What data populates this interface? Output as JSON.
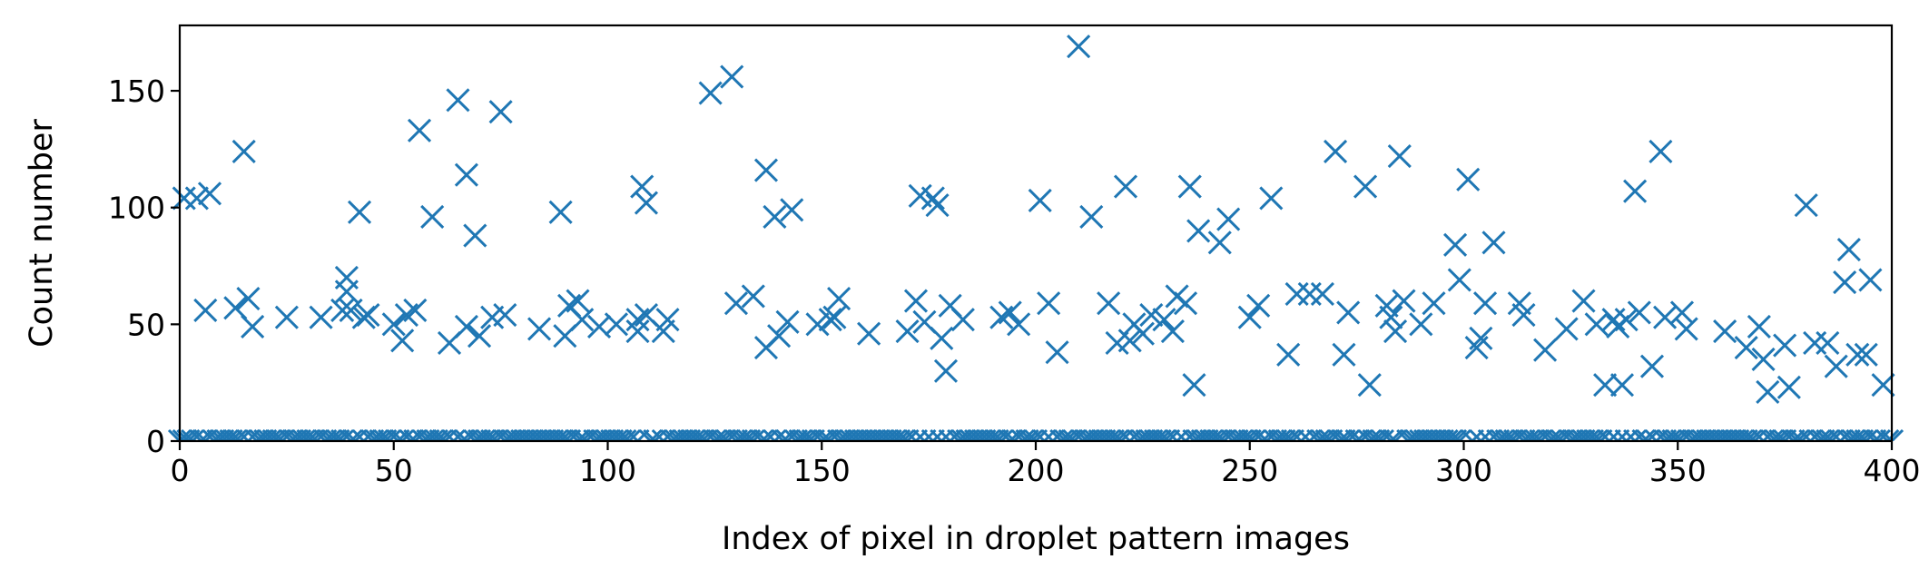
{
  "chart_data": {
    "type": "scatter",
    "marker": "x",
    "color": "#1f77b4",
    "title": "",
    "xlabel": "Index of pixel in droplet pattern images",
    "ylabel": "Count number",
    "xlim": [
      0,
      400
    ],
    "ylim": [
      0,
      178
    ],
    "xticks": [
      0,
      50,
      100,
      150,
      200,
      250,
      300,
      350,
      400
    ],
    "yticks": [
      0,
      50,
      100,
      150
    ],
    "grid": false,
    "legend": "none",
    "zero_count_indices": [
      0,
      1,
      2,
      3,
      5,
      6,
      8,
      9,
      10,
      11,
      12,
      13,
      14,
      16,
      18,
      19,
      20,
      21,
      22,
      23,
      24,
      26,
      27,
      28,
      29,
      30,
      31,
      32,
      34,
      35,
      36,
      37,
      38,
      40,
      41,
      43,
      45,
      46,
      47,
      48,
      49,
      51,
      52,
      54,
      55,
      57,
      58,
      59,
      60,
      61,
      62,
      64,
      66,
      67,
      69,
      70,
      71,
      72,
      73,
      74,
      76,
      77,
      78,
      79,
      80,
      81,
      82,
      83,
      84,
      85,
      86,
      87,
      88,
      89,
      90,
      91,
      93,
      94,
      95,
      97,
      98,
      99,
      100,
      101,
      102,
      103,
      104,
      105,
      107,
      110,
      111,
      113,
      115,
      116,
      117,
      118,
      119,
      120,
      121,
      122,
      123,
      125,
      126,
      127,
      128,
      130,
      131,
      132,
      133,
      134,
      136,
      137,
      139,
      141,
      142,
      144,
      145,
      146,
      147,
      148,
      150,
      151,
      152,
      154,
      155,
      156,
      157,
      158,
      159,
      160,
      161,
      162,
      163,
      164,
      165,
      166,
      167,
      168,
      169,
      170,
      172,
      174,
      176,
      178,
      180,
      182,
      183,
      184,
      185,
      186,
      187,
      188,
      189,
      190,
      191,
      192,
      194,
      195,
      197,
      198,
      199,
      200,
      202,
      204,
      206,
      207,
      208,
      209,
      211,
      212,
      213,
      214,
      215,
      216,
      217,
      218,
      219,
      220,
      222,
      224,
      225,
      226,
      227,
      228,
      229,
      230,
      231,
      233,
      235,
      237,
      238,
      239,
      240,
      241,
      242,
      243,
      244,
      246,
      247,
      248,
      249,
      250,
      251,
      253,
      254,
      256,
      257,
      258,
      259,
      260,
      262,
      264,
      266,
      267,
      268,
      269,
      271,
      272,
      273,
      275,
      276,
      278,
      279,
      280,
      281,
      283,
      284,
      287,
      288,
      289,
      290,
      291,
      292,
      293,
      294,
      295,
      296,
      297,
      298,
      299,
      302,
      304,
      306,
      308,
      309,
      310,
      311,
      312,
      314,
      315,
      316,
      317,
      318,
      320,
      321,
      322,
      323,
      325,
      326,
      327,
      328,
      329,
      330,
      331,
      332,
      334,
      336,
      338,
      340,
      342,
      343,
      345,
      347,
      348,
      349,
      350,
      351,
      353,
      354,
      355,
      356,
      357,
      358,
      359,
      360,
      361,
      362,
      363,
      364,
      365,
      366,
      367,
      368,
      370,
      372,
      373,
      374,
      375,
      377,
      378,
      379,
      381,
      383,
      384,
      385,
      386,
      388,
      390,
      391,
      392,
      393,
      394,
      396,
      397,
      399,
      400
    ],
    "points": [
      [
        1,
        104
      ],
      [
        4,
        104
      ],
      [
        7,
        106
      ],
      [
        6,
        56
      ],
      [
        13,
        57
      ],
      [
        15,
        124
      ],
      [
        16,
        61
      ],
      [
        17,
        49
      ],
      [
        25,
        53
      ],
      [
        33,
        53
      ],
      [
        38,
        56
      ],
      [
        39,
        64
      ],
      [
        39,
        70
      ],
      [
        40,
        56
      ],
      [
        42,
        98
      ],
      [
        43,
        53
      ],
      [
        44,
        54
      ],
      [
        50,
        50
      ],
      [
        52,
        43
      ],
      [
        53,
        54
      ],
      [
        55,
        56
      ],
      [
        56,
        133
      ],
      [
        59,
        96
      ],
      [
        63,
        42
      ],
      [
        65,
        146
      ],
      [
        67,
        49
      ],
      [
        67,
        114
      ],
      [
        69,
        88
      ],
      [
        70,
        45
      ],
      [
        73,
        53
      ],
      [
        75,
        141
      ],
      [
        76,
        54
      ],
      [
        84,
        48
      ],
      [
        89,
        98
      ],
      [
        90,
        45
      ],
      [
        91,
        58
      ],
      [
        93,
        60
      ],
      [
        94,
        52
      ],
      [
        98,
        49
      ],
      [
        102,
        50
      ],
      [
        107,
        52
      ],
      [
        107,
        47
      ],
      [
        108,
        109
      ],
      [
        109,
        102
      ],
      [
        109,
        54
      ],
      [
        113,
        47
      ],
      [
        114,
        52
      ],
      [
        124,
        149
      ],
      [
        129,
        156
      ],
      [
        130,
        59
      ],
      [
        134,
        62
      ],
      [
        137,
        116
      ],
      [
        137,
        40
      ],
      [
        139,
        96
      ],
      [
        140,
        45
      ],
      [
        142,
        51
      ],
      [
        143,
        99
      ],
      [
        149,
        50
      ],
      [
        152,
        52
      ],
      [
        153,
        53
      ],
      [
        154,
        61
      ],
      [
        161,
        46
      ],
      [
        170,
        47
      ],
      [
        172,
        60
      ],
      [
        173,
        105
      ],
      [
        174,
        51
      ],
      [
        176,
        104
      ],
      [
        177,
        101
      ],
      [
        178,
        44
      ],
      [
        179,
        30
      ],
      [
        180,
        58
      ],
      [
        183,
        52
      ],
      [
        192,
        53
      ],
      [
        194,
        55
      ],
      [
        196,
        50
      ],
      [
        201,
        103
      ],
      [
        203,
        59
      ],
      [
        205,
        38
      ],
      [
        210,
        169
      ],
      [
        213,
        96
      ],
      [
        217,
        59
      ],
      [
        219,
        42
      ],
      [
        221,
        109
      ],
      [
        222,
        43
      ],
      [
        223,
        50
      ],
      [
        225,
        46
      ],
      [
        227,
        54
      ],
      [
        230,
        52
      ],
      [
        232,
        47
      ],
      [
        233,
        62
      ],
      [
        235,
        59
      ],
      [
        236,
        109
      ],
      [
        237,
        24
      ],
      [
        238,
        90
      ],
      [
        243,
        85
      ],
      [
        245,
        95
      ],
      [
        250,
        53
      ],
      [
        252,
        58
      ],
      [
        255,
        104
      ],
      [
        259,
        37
      ],
      [
        261,
        63
      ],
      [
        264,
        63
      ],
      [
        267,
        63
      ],
      [
        270,
        124
      ],
      [
        272,
        37
      ],
      [
        273,
        55
      ],
      [
        277,
        109
      ],
      [
        278,
        24
      ],
      [
        282,
        58
      ],
      [
        283,
        53
      ],
      [
        284,
        47
      ],
      [
        285,
        122
      ],
      [
        286,
        60
      ],
      [
        290,
        50
      ],
      [
        293,
        59
      ],
      [
        298,
        84
      ],
      [
        299,
        69
      ],
      [
        301,
        112
      ],
      [
        303,
        40
      ],
      [
        304,
        44
      ],
      [
        305,
        59
      ],
      [
        307,
        85
      ],
      [
        313,
        59
      ],
      [
        314,
        54
      ],
      [
        319,
        39
      ],
      [
        324,
        48
      ],
      [
        328,
        60
      ],
      [
        331,
        50
      ],
      [
        333,
        24
      ],
      [
        335,
        52
      ],
      [
        336,
        49
      ],
      [
        337,
        24
      ],
      [
        338,
        52
      ],
      [
        340,
        107
      ],
      [
        341,
        55
      ],
      [
        344,
        32
      ],
      [
        346,
        124
      ],
      [
        347,
        53
      ],
      [
        351,
        55
      ],
      [
        352,
        48
      ],
      [
        361,
        47
      ],
      [
        366,
        40
      ],
      [
        369,
        49
      ],
      [
        370,
        35
      ],
      [
        371,
        21
      ],
      [
        375,
        41
      ],
      [
        376,
        23
      ],
      [
        380,
        101
      ],
      [
        382,
        42
      ],
      [
        385,
        42
      ],
      [
        387,
        32
      ],
      [
        389,
        68
      ],
      [
        390,
        82
      ],
      [
        392,
        37
      ],
      [
        394,
        37
      ],
      [
        395,
        69
      ],
      [
        398,
        24
      ]
    ]
  }
}
